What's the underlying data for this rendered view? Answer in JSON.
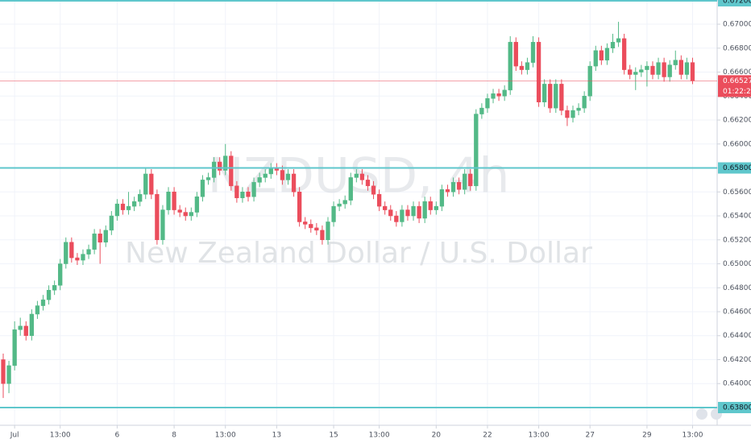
{
  "chart_data": {
    "type": "candlestick",
    "title": "NZDUSD, 4h",
    "subtitle": "New Zealand Dollar / U.S. Dollar",
    "categories": [
      null,
      null,
      "Jul",
      null,
      null,
      null,
      null,
      null,
      null,
      null,
      "13:00",
      null,
      null,
      null,
      null,
      null,
      null,
      null,
      null,
      null,
      "6",
      null,
      null,
      null,
      null,
      null,
      null,
      null,
      null,
      null,
      "8",
      null,
      null,
      null,
      null,
      null,
      null,
      null,
      null,
      "13:00",
      null,
      null,
      null,
      null,
      null,
      null,
      null,
      null,
      "13",
      null,
      null,
      null,
      null,
      null,
      null,
      null,
      null,
      null,
      "15",
      null,
      null,
      null,
      null,
      null,
      null,
      null,
      "13:00",
      null,
      null,
      null,
      null,
      null,
      null,
      null,
      null,
      null,
      "20",
      null,
      null,
      null,
      null,
      null,
      null,
      null,
      null,
      "22",
      null,
      null,
      null,
      null,
      null,
      null,
      null,
      null,
      "13:00",
      null,
      null,
      null,
      null,
      null,
      null,
      null,
      null,
      "27",
      null,
      null,
      null,
      null,
      null,
      null,
      null,
      null,
      null,
      "29",
      null,
      null,
      null,
      null,
      null,
      null,
      null,
      "13:00"
    ],
    "open": [
      0.642,
      0.64,
      0.6415,
      0.6445,
      0.6448,
      0.644,
      0.6458,
      0.6465,
      0.647,
      0.6478,
      0.6482,
      0.65,
      0.6518,
      0.6505,
      0.6503,
      0.6508,
      0.6512,
      0.6525,
      0.6518,
      0.6528,
      0.654,
      0.655,
      0.6545,
      0.6548,
      0.6552,
      0.6558,
      0.6575,
      0.6558,
      0.652,
      0.6545,
      0.656,
      0.6545,
      0.6543,
      0.654,
      0.6543,
      0.6556,
      0.657,
      0.6572,
      0.6585,
      0.6578,
      0.659,
      0.6565,
      0.6555,
      0.656,
      0.6556,
      0.6568,
      0.6572,
      0.6575,
      0.658,
      0.6578,
      0.657,
      0.6575,
      0.656,
      0.6535,
      0.6533,
      0.653,
      0.6528,
      0.652,
      0.6535,
      0.6548,
      0.655,
      0.6553,
      0.6572,
      0.6575,
      0.657,
      0.6565,
      0.6558,
      0.6548,
      0.6545,
      0.654,
      0.6535,
      0.6545,
      0.654,
      0.6548,
      0.6538,
      0.6552,
      0.6545,
      0.6548,
      0.6562,
      0.656,
      0.6568,
      0.6562,
      0.6575,
      0.6565,
      0.6625,
      0.663,
      0.6638,
      0.6642,
      0.664,
      0.6645,
      0.6685,
      0.6665,
      0.6662,
      0.6668,
      0.6685,
      0.6635,
      0.665,
      0.663,
      0.665,
      0.6628,
      0.6622,
      0.6628,
      0.663,
      0.664,
      0.6665,
      0.6678,
      0.667,
      0.668,
      0.6685,
      0.6688,
      0.6662,
      0.6658,
      0.666,
      0.6662,
      0.6665,
      0.6658,
      0.6668,
      0.6656,
      0.6666,
      0.667,
      0.6658,
      0.6668
    ],
    "high": [
      0.6425,
      0.6419,
      0.6452,
      0.6455,
      0.6452,
      0.6462,
      0.6469,
      0.6474,
      0.6482,
      0.6486,
      0.6504,
      0.6522,
      0.6522,
      0.6509,
      0.6512,
      0.6516,
      0.6529,
      0.6529,
      0.6532,
      0.6544,
      0.6554,
      0.6554,
      0.656,
      0.6556,
      0.6562,
      0.658,
      0.6579,
      0.6562,
      0.6549,
      0.6564,
      0.6564,
      0.6549,
      0.6547,
      0.6547,
      0.656,
      0.6574,
      0.6576,
      0.6589,
      0.6589,
      0.66,
      0.6594,
      0.6569,
      0.6564,
      0.6564,
      0.6572,
      0.6576,
      0.6579,
      0.6584,
      0.6584,
      0.6582,
      0.6579,
      0.6579,
      0.6564,
      0.6539,
      0.6537,
      0.6534,
      0.6532,
      0.6539,
      0.6552,
      0.6554,
      0.6557,
      0.6576,
      0.6579,
      0.6579,
      0.6574,
      0.6569,
      0.6562,
      0.6552,
      0.6549,
      0.6544,
      0.6549,
      0.6549,
      0.6552,
      0.6552,
      0.6556,
      0.6556,
      0.6552,
      0.6566,
      0.6566,
      0.6572,
      0.6572,
      0.6579,
      0.6579,
      0.6629,
      0.6634,
      0.6642,
      0.6646,
      0.6646,
      0.6649,
      0.669,
      0.6689,
      0.6669,
      0.6672,
      0.669,
      0.6689,
      0.6654,
      0.6654,
      0.6654,
      0.6654,
      0.6632,
      0.6632,
      0.6634,
      0.6644,
      0.6669,
      0.6682,
      0.6682,
      0.6684,
      0.6692,
      0.6702,
      0.6692,
      0.6666,
      0.6664,
      0.6666,
      0.6669,
      0.6669,
      0.6672,
      0.6672,
      0.667,
      0.6678,
      0.6674,
      0.6672,
      0.6672
    ],
    "low": [
      0.6388,
      0.6392,
      0.6411,
      0.644,
      0.6436,
      0.6436,
      0.6454,
      0.6461,
      0.6466,
      0.6474,
      0.6478,
      0.6496,
      0.6501,
      0.6499,
      0.6499,
      0.6504,
      0.6508,
      0.65,
      0.6514,
      0.6524,
      0.6536,
      0.6541,
      0.6541,
      0.6544,
      0.6548,
      0.6554,
      0.6554,
      0.6516,
      0.6516,
      0.6541,
      0.6541,
      0.6539,
      0.6536,
      0.6536,
      0.6539,
      0.6552,
      0.6566,
      0.6568,
      0.6574,
      0.6574,
      0.6561,
      0.6551,
      0.6551,
      0.6552,
      0.6552,
      0.6564,
      0.6568,
      0.6571,
      0.6574,
      0.6566,
      0.6566,
      0.6556,
      0.6531,
      0.6529,
      0.6526,
      0.6524,
      0.6516,
      0.6516,
      0.6531,
      0.6544,
      0.6546,
      0.6549,
      0.6568,
      0.6566,
      0.6561,
      0.6554,
      0.6544,
      0.6541,
      0.6536,
      0.6531,
      0.6531,
      0.6536,
      0.6536,
      0.6534,
      0.6534,
      0.6541,
      0.6541,
      0.6544,
      0.6556,
      0.6556,
      0.6558,
      0.6558,
      0.6561,
      0.6561,
      0.6621,
      0.6626,
      0.6634,
      0.6636,
      0.6636,
      0.6641,
      0.6661,
      0.6658,
      0.6658,
      0.6664,
      0.6631,
      0.6631,
      0.6626,
      0.6626,
      0.6624,
      0.6615,
      0.6618,
      0.6624,
      0.6626,
      0.6636,
      0.6661,
      0.6666,
      0.6666,
      0.6676,
      0.6681,
      0.6658,
      0.6654,
      0.6645,
      0.6656,
      0.6648,
      0.6654,
      0.6654,
      0.6652,
      0.6652,
      0.6662,
      0.6654,
      0.6654,
      0.665
    ],
    "close": [
      0.64,
      0.6415,
      0.6445,
      0.6448,
      0.644,
      0.6458,
      0.6465,
      0.647,
      0.6478,
      0.6482,
      0.65,
      0.6518,
      0.6505,
      0.6503,
      0.6508,
      0.6512,
      0.6525,
      0.6518,
      0.6528,
      0.654,
      0.655,
      0.6545,
      0.6548,
      0.6552,
      0.6558,
      0.6575,
      0.6558,
      0.652,
      0.6545,
      0.656,
      0.6545,
      0.6543,
      0.654,
      0.6543,
      0.6556,
      0.657,
      0.6572,
      0.6585,
      0.6578,
      0.659,
      0.6565,
      0.6555,
      0.656,
      0.6556,
      0.6568,
      0.6572,
      0.6575,
      0.658,
      0.6578,
      0.657,
      0.6575,
      0.656,
      0.6535,
      0.6533,
      0.653,
      0.6528,
      0.652,
      0.6535,
      0.6548,
      0.655,
      0.6553,
      0.6572,
      0.6575,
      0.657,
      0.6565,
      0.6558,
      0.6548,
      0.6545,
      0.654,
      0.6535,
      0.6545,
      0.654,
      0.6548,
      0.6538,
      0.6552,
      0.6545,
      0.6548,
      0.6562,
      0.656,
      0.6568,
      0.6562,
      0.6575,
      0.6565,
      0.6625,
      0.663,
      0.6638,
      0.6642,
      0.664,
      0.6645,
      0.6685,
      0.6665,
      0.6662,
      0.6668,
      0.6685,
      0.6635,
      0.665,
      0.663,
      0.665,
      0.6628,
      0.6622,
      0.6628,
      0.663,
      0.664,
      0.6665,
      0.6678,
      0.667,
      0.668,
      0.6685,
      0.6688,
      0.6662,
      0.6658,
      0.666,
      0.6662,
      0.6665,
      0.6658,
      0.6668,
      0.6656,
      0.6666,
      0.667,
      0.6658,
      0.6668,
      0.66527
    ],
    "up_color": "#53b987",
    "down_color": "#eb4d5c",
    "ylim": [
      0.63652,
      0.67202
    ],
    "yticks": [
      {
        "value": 0.638,
        "label": "0.63800"
      },
      {
        "value": 0.64,
        "label": "0.64000"
      },
      {
        "value": 0.642,
        "label": "0.64200"
      },
      {
        "value": 0.644,
        "label": "0.64400"
      },
      {
        "value": 0.646,
        "label": "0.64600"
      },
      {
        "value": 0.648,
        "label": "0.64800"
      },
      {
        "value": 0.65,
        "label": "0.65000"
      },
      {
        "value": 0.652,
        "label": "0.65200"
      },
      {
        "value": 0.654,
        "label": "0.65400"
      },
      {
        "value": 0.656,
        "label": "0.65600"
      },
      {
        "value": 0.658,
        "label": "0.65800"
      },
      {
        "value": 0.66,
        "label": "0.66000"
      },
      {
        "value": 0.662,
        "label": "0.66200"
      },
      {
        "value": 0.664,
        "label": "0.66400"
      },
      {
        "value": 0.666,
        "label": "0.66600"
      },
      {
        "value": 0.668,
        "label": "0.66800"
      },
      {
        "value": 0.67,
        "label": "0.67000"
      },
      {
        "value": 0.672,
        "label": "0.67200"
      }
    ],
    "grid": true,
    "levels": [
      {
        "value": 0.672,
        "label": "0.67200"
      },
      {
        "value": 0.658,
        "label": "0.65800"
      },
      {
        "value": 0.638,
        "label": "0.63800"
      }
    ],
    "level_color": "#5fc7cc",
    "current_price": {
      "value": 0.66527,
      "label": "0.66527"
    },
    "countdown": "01:22:28"
  }
}
